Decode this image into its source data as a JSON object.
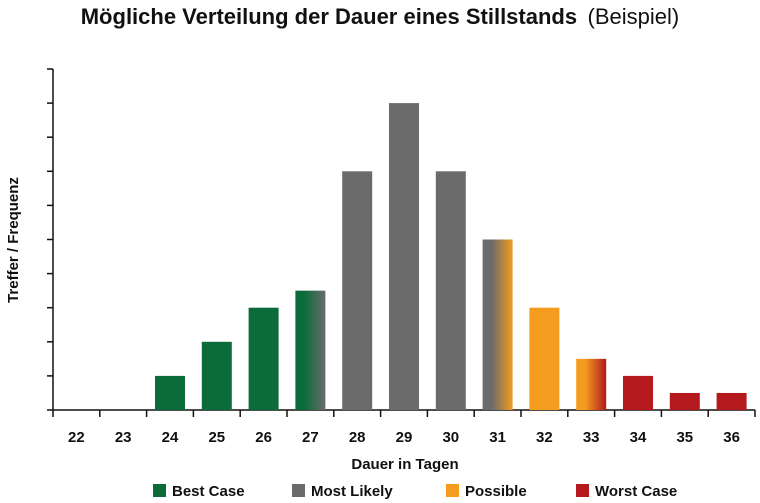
{
  "chart_data": {
    "type": "bar",
    "title": "Mögliche Verteilung der Dauer eines Stillstands",
    "subtitle": "(Beispiel)",
    "xlabel": "Dauer in Tagen",
    "ylabel": "Treffer / Frequenz",
    "categories": [
      "22",
      "23",
      "24",
      "25",
      "26",
      "27",
      "28",
      "29",
      "30",
      "31",
      "32",
      "33",
      "34",
      "35",
      "36"
    ],
    "values": [
      0,
      0,
      1,
      2,
      3,
      3.5,
      7,
      9,
      7,
      5,
      3,
      1.5,
      1,
      0.5,
      0.5
    ],
    "groups": [
      "best",
      "best",
      "best",
      "best",
      "best",
      "best-likely",
      "likely",
      "likely",
      "likely",
      "likely-possible",
      "possible",
      "possible-worst",
      "worst",
      "worst",
      "worst"
    ],
    "ylim": [
      0,
      10
    ],
    "grid": false,
    "legend_position": "bottom",
    "legend": [
      {
        "key": "best",
        "label": "Best Case",
        "color": "#0b6b3a"
      },
      {
        "key": "likely",
        "label": "Most Likely",
        "color": "#6b6b6b"
      },
      {
        "key": "possible",
        "label": "Possible",
        "color": "#f39c1f"
      },
      {
        "key": "worst",
        "label": "Worst Case",
        "color": "#b3191d"
      }
    ]
  }
}
